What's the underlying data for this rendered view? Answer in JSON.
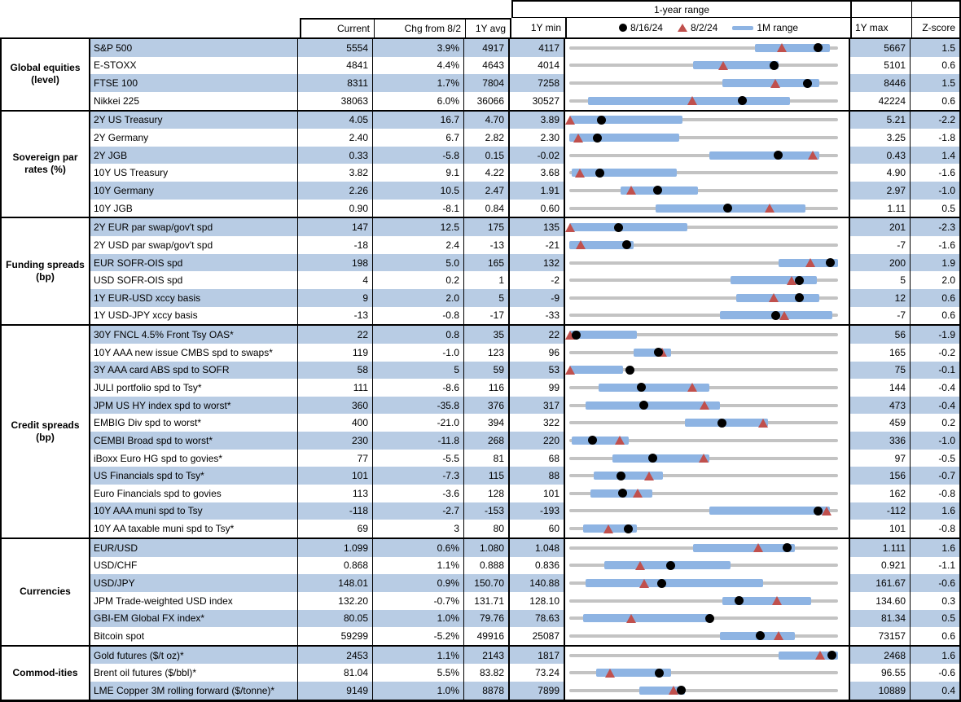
{
  "columns": {
    "current": "Current",
    "chg": "Chg from 8/2",
    "avg": "1Y avg",
    "min": "1Y min",
    "max": "1Y max",
    "z": "Z-score"
  },
  "range_header": "1-year range",
  "legend": {
    "dot": "8/16/24",
    "tri": "8/2/24",
    "bar": "1M range"
  },
  "colors": {
    "row_blue": "#b8cce4",
    "bar_blue": "#8eb4e3",
    "triangle_red": "#c0504d",
    "dot_black": "#000000",
    "track_gray": "#c3c3c3"
  },
  "chart_data": {
    "type": "table",
    "sections": [
      {
        "name": "Global equities (level)",
        "rows": [
          {
            "label": "S&P 500",
            "current": "5554",
            "chg": "3.9%",
            "avg_1y": "4917",
            "min_1y": "4117",
            "max_1y": "5667",
            "z_score": "1.5",
            "markers": {
              "dot_frac": 0.927,
              "tri_frac": 0.793,
              "bar_frac": [
                0.69,
                0.97
              ]
            }
          },
          {
            "label": "E-STOXX",
            "current": "4841",
            "chg": "4.4%",
            "avg_1y": "4643",
            "min_1y": "4014",
            "max_1y": "5101",
            "z_score": "0.6",
            "markers": {
              "dot_frac": 0.761,
              "tri_frac": 0.573,
              "bar_frac": [
                0.46,
                0.78
              ]
            }
          },
          {
            "label": "FTSE 100",
            "current": "8311",
            "chg": "1.7%",
            "avg_1y": "7804",
            "min_1y": "7258",
            "max_1y": "8446",
            "z_score": "1.5",
            "markers": {
              "dot_frac": 0.886,
              "tri_frac": 0.769,
              "bar_frac": [
                0.57,
                0.93
              ]
            }
          },
          {
            "label": "Nikkei 225",
            "current": "38063",
            "chg": "6.0%",
            "avg_1y": "36066",
            "min_1y": "30527",
            "max_1y": "42224",
            "z_score": "0.6",
            "markers": {
              "dot_frac": 0.644,
              "tri_frac": 0.46,
              "bar_frac": [
                0.07,
                0.82
              ]
            }
          }
        ]
      },
      {
        "name": "Sovereign par rates (%)",
        "rows": [
          {
            "label": "2Y US Treasury",
            "current": "4.05",
            "chg": "16.7",
            "avg_1y": "4.70",
            "min_1y": "3.89",
            "max_1y": "5.21",
            "z_score": "-2.2",
            "markers": {
              "dot_frac": 0.121,
              "tri_frac": 0.004,
              "bar_frac": [
                0,
                0.42
              ]
            }
          },
          {
            "label": "2Y Germany",
            "current": "2.40",
            "chg": "6.7",
            "avg_1y": "2.82",
            "min_1y": "2.30",
            "max_1y": "3.25",
            "z_score": "-1.8",
            "markers": {
              "dot_frac": 0.105,
              "tri_frac": 0.035,
              "bar_frac": [
                0,
                0.41
              ]
            }
          },
          {
            "label": "2Y JGB",
            "current": "0.33",
            "chg": "-5.8",
            "avg_1y": "0.15",
            "min_1y": "-0.02",
            "max_1y": "0.43",
            "z_score": "1.4",
            "markers": {
              "dot_frac": 0.778,
              "tri_frac": 0.907,
              "bar_frac": [
                0.52,
                0.93
              ]
            }
          },
          {
            "label": "10Y US Treasury",
            "current": "3.82",
            "chg": "9.1",
            "avg_1y": "4.22",
            "min_1y": "3.68",
            "max_1y": "4.90",
            "z_score": "-1.6",
            "markers": {
              "dot_frac": 0.115,
              "tri_frac": 0.04,
              "bar_frac": [
                0.01,
                0.4
              ]
            }
          },
          {
            "label": "10Y Germany",
            "current": "2.26",
            "chg": "10.5",
            "avg_1y": "2.47",
            "min_1y": "1.91",
            "max_1y": "2.97",
            "z_score": "-1.0",
            "markers": {
              "dot_frac": 0.33,
              "tri_frac": 0.231,
              "bar_frac": [
                0.19,
                0.48
              ]
            }
          },
          {
            "label": "10Y JGB",
            "current": "0.90",
            "chg": "-8.1",
            "avg_1y": "0.84",
            "min_1y": "0.60",
            "max_1y": "1.11",
            "z_score": "0.5",
            "markers": {
              "dot_frac": 0.588,
              "tri_frac": 0.747,
              "bar_frac": [
                0.32,
                0.88
              ]
            }
          }
        ]
      },
      {
        "name": "Funding spreads (bp)",
        "rows": [
          {
            "label": "2Y EUR par swap/gov't spd",
            "current": "147",
            "chg": "12.5",
            "avg_1y": "175",
            "min_1y": "135",
            "max_1y": "201",
            "z_score": "-2.3",
            "markers": {
              "dot_frac": 0.182,
              "tri_frac": 0.004,
              "bar_frac": [
                0,
                0.44
              ]
            }
          },
          {
            "label": "2Y USD par swap/gov't spd",
            "current": "-18",
            "chg": "2.4",
            "avg_1y": "-13",
            "min_1y": "-21",
            "max_1y": "-7",
            "z_score": "-1.6",
            "markers": {
              "dot_frac": 0.214,
              "tri_frac": 0.043,
              "bar_frac": [
                0,
                0.24
              ]
            }
          },
          {
            "label": "EUR SOFR-OIS spd",
            "current": "198",
            "chg": "5.0",
            "avg_1y": "165",
            "min_1y": "132",
            "max_1y": "200",
            "z_score": "1.9",
            "markers": {
              "dot_frac": 0.971,
              "tri_frac": 0.897,
              "bar_frac": [
                0.78,
                1
              ]
            }
          },
          {
            "label": "USD SOFR-OIS spd",
            "current": "4",
            "chg": "0.2",
            "avg_1y": "1",
            "min_1y": "-2",
            "max_1y": "5",
            "z_score": "2.0",
            "markers": {
              "dot_frac": 0.857,
              "tri_frac": 0.829,
              "bar_frac": [
                0.6,
                0.92
              ]
            }
          },
          {
            "label": "1Y EUR-USD xccy basis",
            "current": "9",
            "chg": "2.0",
            "avg_1y": "5",
            "min_1y": "-9",
            "max_1y": "12",
            "z_score": "0.6",
            "markers": {
              "dot_frac": 0.857,
              "tri_frac": 0.762,
              "bar_frac": [
                0.62,
                0.93
              ]
            }
          },
          {
            "label": "1Y USD-JPY xccy basis",
            "current": "-13",
            "chg": "-0.8",
            "avg_1y": "-17",
            "min_1y": "-33",
            "max_1y": "-7",
            "z_score": "0.6",
            "markers": {
              "dot_frac": 0.769,
              "tri_frac": 0.8,
              "bar_frac": [
                0.56,
                0.98
              ]
            }
          }
        ]
      },
      {
        "name": "Credit spreads (bp)",
        "rows": [
          {
            "label": "30Y FNCL 4.5% Front Tsy OAS*",
            "current": "22",
            "chg": "0.8",
            "avg_1y": "35",
            "min_1y": "22",
            "max_1y": "56",
            "z_score": "-1.9",
            "markers": {
              "dot_frac": 0.025,
              "tri_frac": 0.004,
              "bar_frac": [
                0,
                0.25
              ]
            }
          },
          {
            "label": "10Y AAA new issue CMBS spd to swaps*",
            "current": "119",
            "chg": "-1.0",
            "avg_1y": "123",
            "min_1y": "96",
            "max_1y": "165",
            "z_score": "-0.2",
            "markers": {
              "dot_frac": 0.333,
              "tri_frac": 0.348,
              "bar_frac": [
                0.24,
                0.38
              ]
            }
          },
          {
            "label": "3Y AAA card ABS spd to SOFR",
            "current": "58",
            "chg": "5",
            "avg_1y": "59",
            "min_1y": "53",
            "max_1y": "75",
            "z_score": "-0.1",
            "markers": {
              "dot_frac": 0.227,
              "tri_frac": 0.004,
              "bar_frac": [
                0,
                0.2
              ]
            }
          },
          {
            "label": "JULI portfolio spd to Tsy*",
            "current": "111",
            "chg": "-8.6",
            "avg_1y": "116",
            "min_1y": "99",
            "max_1y": "144",
            "z_score": "-0.4",
            "markers": {
              "dot_frac": 0.267,
              "tri_frac": 0.458,
              "bar_frac": [
                0.11,
                0.52
              ]
            }
          },
          {
            "label": "JPM US HY index spd to worst*",
            "current": "360",
            "chg": "-35.8",
            "avg_1y": "376",
            "min_1y": "317",
            "max_1y": "473",
            "z_score": "-0.4",
            "markers": {
              "dot_frac": 0.276,
              "tri_frac": 0.505,
              "bar_frac": [
                0.06,
                0.56
              ]
            }
          },
          {
            "label": "EMBIG Div spd to worst*",
            "current": "400",
            "chg": "-21.0",
            "avg_1y": "394",
            "min_1y": "322",
            "max_1y": "459",
            "z_score": "0.2",
            "markers": {
              "dot_frac": 0.569,
              "tri_frac": 0.723,
              "bar_frac": [
                0.43,
                0.74
              ]
            }
          },
          {
            "label": "CEMBI Broad spd to worst*",
            "current": "230",
            "chg": "-11.8",
            "avg_1y": "268",
            "min_1y": "220",
            "max_1y": "336",
            "z_score": "-1.0",
            "markers": {
              "dot_frac": 0.086,
              "tri_frac": 0.188,
              "bar_frac": [
                0.01,
                0.22
              ]
            }
          },
          {
            "label": "iBoxx Euro HG spd to govies*",
            "current": "77",
            "chg": "-5.5",
            "avg_1y": "81",
            "min_1y": "68",
            "max_1y": "97",
            "z_score": "-0.5",
            "markers": {
              "dot_frac": 0.31,
              "tri_frac": 0.5,
              "bar_frac": [
                0.16,
                0.52
              ]
            }
          },
          {
            "label": "US Financials spd to Tsy*",
            "current": "101",
            "chg": "-7.3",
            "avg_1y": "115",
            "min_1y": "88",
            "max_1y": "156",
            "z_score": "-0.7",
            "markers": {
              "dot_frac": 0.191,
              "tri_frac": 0.299,
              "bar_frac": [
                0.09,
                0.35
              ]
            }
          },
          {
            "label": "Euro Financials spd to govies",
            "current": "113",
            "chg": "-3.6",
            "avg_1y": "128",
            "min_1y": "101",
            "max_1y": "162",
            "z_score": "-0.8",
            "markers": {
              "dot_frac": 0.197,
              "tri_frac": 0.256,
              "bar_frac": [
                0.08,
                0.31
              ]
            }
          },
          {
            "label": "10Y AAA muni spd to Tsy",
            "current": "-118",
            "chg": "-2.7",
            "avg_1y": "-153",
            "min_1y": "-193",
            "max_1y": "-112",
            "z_score": "1.6",
            "markers": {
              "dot_frac": 0.926,
              "tri_frac": 0.959,
              "bar_frac": [
                0.52,
                0.97
              ]
            }
          },
          {
            "label": "10Y AA taxable muni spd to Tsy*",
            "current": "69",
            "chg": "3",
            "avg_1y": "80",
            "min_1y": "60",
            "max_1y": "101",
            "z_score": "-0.8",
            "markers": {
              "dot_frac": 0.22,
              "tri_frac": 0.146,
              "bar_frac": [
                0.05,
                0.25
              ]
            }
          }
        ]
      },
      {
        "name": "Currencies",
        "rows": [
          {
            "label": "EUR/USD",
            "current": "1.099",
            "chg": "0.6%",
            "avg_1y": "1.080",
            "min_1y": "1.048",
            "max_1y": "1.111",
            "z_score": "1.6",
            "markers": {
              "dot_frac": 0.81,
              "tri_frac": 0.705,
              "bar_frac": [
                0.46,
                0.84
              ]
            }
          },
          {
            "label": "USD/CHF",
            "current": "0.868",
            "chg": "1.1%",
            "avg_1y": "0.888",
            "min_1y": "0.836",
            "max_1y": "0.921",
            "z_score": "-1.1",
            "markers": {
              "dot_frac": 0.376,
              "tri_frac": 0.265,
              "bar_frac": [
                0.13,
                0.6
              ]
            }
          },
          {
            "label": "USD/JPY",
            "current": "148.01",
            "chg": "0.9%",
            "avg_1y": "150.70",
            "min_1y": "140.88",
            "max_1y": "161.67",
            "z_score": "-0.6",
            "markers": {
              "dot_frac": 0.343,
              "tri_frac": 0.279,
              "bar_frac": [
                0.06,
                0.72
              ]
            }
          },
          {
            "label": "JPM Trade-weighted USD index",
            "current": "132.20",
            "chg": "-0.7%",
            "avg_1y": "131.71",
            "min_1y": "128.10",
            "max_1y": "134.60",
            "z_score": "0.3",
            "markers": {
              "dot_frac": 0.631,
              "tri_frac": 0.774,
              "bar_frac": [
                0.57,
                0.9
              ]
            }
          },
          {
            "label": "GBI-EM Global FX index*",
            "current": "80.05",
            "chg": "1.0%",
            "avg_1y": "79.76",
            "min_1y": "78.63",
            "max_1y": "81.34",
            "z_score": "0.5",
            "markers": {
              "dot_frac": 0.524,
              "tri_frac": 0.232,
              "bar_frac": [
                0.05,
                0.53
              ]
            }
          },
          {
            "label": "Bitcoin spot",
            "current": "59299",
            "chg": "-5.2%",
            "avg_1y": "49916",
            "min_1y": "25087",
            "max_1y": "73157",
            "z_score": "0.6",
            "markers": {
              "dot_frac": 0.712,
              "tri_frac": 0.779,
              "bar_frac": [
                0.56,
                0.84
              ]
            }
          }
        ]
      },
      {
        "name": "Commod-ities",
        "rows": [
          {
            "label": "Gold futures ($/t oz)*",
            "current": "2453",
            "chg": "1.1%",
            "avg_1y": "2143",
            "min_1y": "1817",
            "max_1y": "2468",
            "z_score": "1.6",
            "markers": {
              "dot_frac": 0.977,
              "tri_frac": 0.936,
              "bar_frac": [
                0.78,
                1
              ]
            }
          },
          {
            "label": "Brent oil futures ($/bbl)*",
            "current": "81.04",
            "chg": "5.5%",
            "avg_1y": "83.82",
            "min_1y": "73.24",
            "max_1y": "96.55",
            "z_score": "-0.6",
            "markers": {
              "dot_frac": 0.335,
              "tri_frac": 0.153,
              "bar_frac": [
                0.1,
                0.38
              ]
            }
          },
          {
            "label": "LME Copper 3M rolling forward ($/tonne)*",
            "current": "9149",
            "chg": "1.0%",
            "avg_1y": "8878",
            "min_1y": "7899",
            "max_1y": "10889",
            "z_score": "0.4",
            "markers": {
              "dot_frac": 0.418,
              "tri_frac": 0.388,
              "bar_frac": [
                0.26,
                0.43
              ]
            }
          }
        ]
      }
    ]
  }
}
